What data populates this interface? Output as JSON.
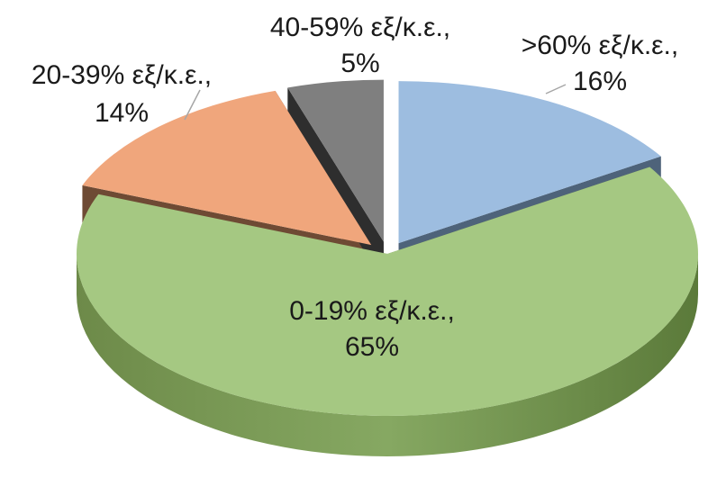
{
  "chart_data": {
    "type": "pie",
    "title": "",
    "categories": [
      ">60% εξ/κ.ε.",
      "0-19% εξ/κ.ε.",
      "20-39% εξ/κ.ε.",
      "40-59% εξ/κ.ε."
    ],
    "values": [
      16,
      65,
      14,
      5
    ],
    "labels": [
      {
        "category": ">60% εξ/κ.ε.,",
        "value": "16%"
      },
      {
        "category": "0-19% εξ/κ.ε.,",
        "value": "65%"
      },
      {
        "category": "20-39% εξ/κ.ε.,",
        "value": "14%"
      },
      {
        "category": "40-59% εξ/κ.ε.,",
        "value": "5%"
      }
    ],
    "colors": [
      "#9dbde0",
      "#a5c882",
      "#f0a67c",
      "#7f7f7f"
    ],
    "side_colors": [
      "#4e637a",
      "#6f8c4d",
      "#6e4a34",
      "#2e2e2e"
    ],
    "style": "3d-exploded",
    "legend": "none"
  }
}
